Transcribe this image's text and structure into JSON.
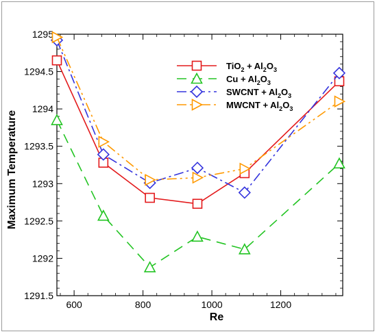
{
  "chart_data": {
    "type": "line",
    "title": "",
    "xlabel": "Re",
    "ylabel": "Maximum Temperature",
    "xlim": [
      550,
      1380
    ],
    "ylim": [
      1291.5,
      1295
    ],
    "xticks": [
      600,
      800,
      1000,
      1200
    ],
    "yticks": [
      1291.5,
      1292,
      1292.5,
      1293,
      1293.5,
      1294,
      1294.5,
      1295
    ],
    "x": [
      550,
      685,
      820,
      958,
      1095,
      1370
    ],
    "grid": false,
    "legend_position": "top-right",
    "series": [
      {
        "name": "TiO₂ + Al₂O₃",
        "legend_base": "TiO",
        "legend_sub1": "2",
        "legend_mid": " + Al",
        "legend_sub2": "2",
        "legend_tail": "O",
        "legend_sub3": "3",
        "values": [
          1294.65,
          1293.28,
          1292.81,
          1292.73,
          1293.14,
          1294.37
        ],
        "color": "#e31a1c",
        "dash": "",
        "marker": "square"
      },
      {
        "name": "Cu + Al₂O₃",
        "legend_base": "Cu",
        "legend_sub1": "",
        "legend_mid": " + Al",
        "legend_sub2": "2",
        "legend_tail": "O",
        "legend_sub3": "3",
        "values": [
          1293.85,
          1292.57,
          1291.88,
          1292.29,
          1292.12,
          1293.27
        ],
        "color": "#22c422",
        "dash": "14,9",
        "marker": "triangle"
      },
      {
        "name": "SWCNT + Al₂O₃",
        "legend_base": "SWCNT",
        "legend_sub1": "",
        "legend_mid": " + Al",
        "legend_sub2": "2",
        "legend_tail": "O",
        "legend_sub3": "3",
        "values": [
          1294.92,
          1293.39,
          1293.01,
          1293.21,
          1292.88,
          1294.48
        ],
        "color": "#3333dd",
        "dash": "14,5,3,5",
        "marker": "diamond"
      },
      {
        "name": "MWCNT + Al₂O₃",
        "legend_base": "MWCNT",
        "legend_sub1": "",
        "legend_mid": " + Al",
        "legend_sub2": "2",
        "legend_tail": "O",
        "legend_sub3": "3",
        "values": [
          1294.96,
          1293.56,
          1293.05,
          1293.08,
          1293.2,
          1294.1
        ],
        "color": "#ff9900",
        "dash": "14,5,3,5,3,5",
        "marker": "triangle-right"
      }
    ]
  }
}
